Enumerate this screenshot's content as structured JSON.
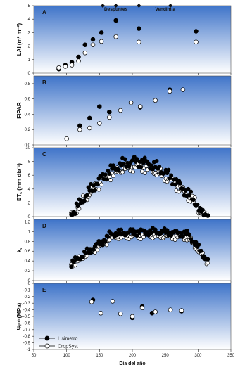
{
  "chart_data": {
    "type": "scatter",
    "xlabel": "Día del año",
    "xlim": [
      50,
      350
    ],
    "xticks": [
      50,
      100,
      150,
      200,
      250,
      300,
      350
    ],
    "legend": {
      "placement": "bottom-left",
      "entries": [
        "Lisimetro",
        "CropSyst"
      ]
    },
    "background": {
      "top": "#3f74c9",
      "bottom": "#ffffff"
    },
    "panels": [
      {
        "id": "A",
        "ylabel": "LAI (m² m⁻²)",
        "ylim": [
          0,
          5
        ],
        "yticks": [
          0,
          1,
          2,
          3,
          4,
          5
        ],
        "annotations": [
          {
            "text": "Despuntes",
            "x": 175,
            "y": 4.75
          },
          {
            "text": "Vendimia",
            "x": 250,
            "y": 4.75
          }
        ],
        "event_markers": {
          "x": [
            155,
            175,
            210,
            258
          ],
          "y": 5
        },
        "series": [
          {
            "name": "Lisimetro",
            "x": [
              88,
              98,
              108,
              118,
              128,
              140,
              153,
              175,
              210,
              297
            ],
            "y": [
              0.3,
              0.6,
              0.8,
              1.2,
              2.1,
              2.5,
              3.0,
              3.9,
              3.3,
              3.1
            ]
          },
          {
            "name": "CropSyst",
            "x": [
              88,
              98,
              108,
              118,
              128,
              140,
              153,
              175,
              210,
              297
            ],
            "y": [
              0.4,
              0.5,
              0.6,
              0.9,
              1.5,
              2.1,
              2.35,
              2.7,
              2.3,
              2.3
            ]
          }
        ]
      },
      {
        "id": "B",
        "ylabel": "FIPAR",
        "ylim": [
          0,
          0.9
        ],
        "yticks": [
          0.0,
          0.2,
          0.4,
          0.6,
          0.8
        ],
        "ytick_labels": [
          "0.0",
          "0.2",
          "0.4",
          "0.6",
          "0.8"
        ],
        "series": [
          {
            "name": "Lisimetro",
            "x": [
              120,
              135,
              150,
              165,
              212,
              257
            ],
            "y": [
              0.25,
              0.35,
              0.5,
              0.43,
              0.49,
              0.72
            ]
          },
          {
            "name": "CropSyst",
            "x": [
              100,
              120,
              135,
              150,
              165,
              182,
              198,
              212,
              235,
              257,
              277
            ],
            "y": [
              0.08,
              0.2,
              0.22,
              0.28,
              0.36,
              0.45,
              0.55,
              0.5,
              0.58,
              0.7,
              0.72
            ]
          }
        ]
      },
      {
        "id": "C",
        "ylabel": "ET꜀ (mm día⁻¹)",
        "ylim": [
          0,
          10
        ],
        "yticks": [
          0,
          2,
          4,
          6,
          8,
          10
        ],
        "series": [
          {
            "name": "Lisimetro",
            "x": [],
            "y": []
          },
          {
            "name": "CropSyst",
            "x": [],
            "y": []
          }
        ]
      },
      {
        "id": "D",
        "ylabel": "k꜀",
        "ylim": [
          0,
          1.25
        ],
        "yticks": [
          0.0,
          0.2,
          0.4,
          0.6,
          0.8,
          1.0,
          1.2
        ],
        "ytick_labels": [
          "0",
          "0.2",
          "0.4",
          "0.6",
          "0.8",
          "1",
          "1.2"
        ],
        "series": [
          {
            "name": "Lisimetro",
            "x": [],
            "y": []
          },
          {
            "name": "CropSyst",
            "x": [],
            "y": []
          }
        ]
      },
      {
        "id": "E",
        "ylabel": "Ψₗᵐⁱⁿ(MPa)",
        "ylim": [
          -1.0,
          0.0
        ],
        "yticks": [
          -1.0,
          -0.9,
          -0.8,
          -0.7,
          -0.6,
          -0.5,
          -0.4,
          -0.3,
          -0.2,
          -0.1,
          0.0
        ],
        "ytick_labels": [
          "-1",
          "-0.9",
          "-0.8",
          "-0.7",
          "-0.6",
          "-0.5",
          "-0.4",
          "-0.3",
          "-0.2",
          "-0.1",
          "0"
        ],
        "series": [
          {
            "name": "Lisimetro",
            "x": [
              140,
              200,
              215,
              230,
              275
            ],
            "y": [
              -0.25,
              -0.52,
              -0.35,
              -0.45,
              -0.42
            ]
          },
          {
            "name": "CropSyst",
            "x": [
              138,
              152,
              170,
              182,
              200,
              215,
              235,
              258,
              275
            ],
            "y": [
              -0.28,
              -0.45,
              -0.27,
              -0.46,
              -0.5,
              -0.37,
              -0.43,
              -0.4,
              -0.41
            ]
          }
        ]
      }
    ]
  }
}
